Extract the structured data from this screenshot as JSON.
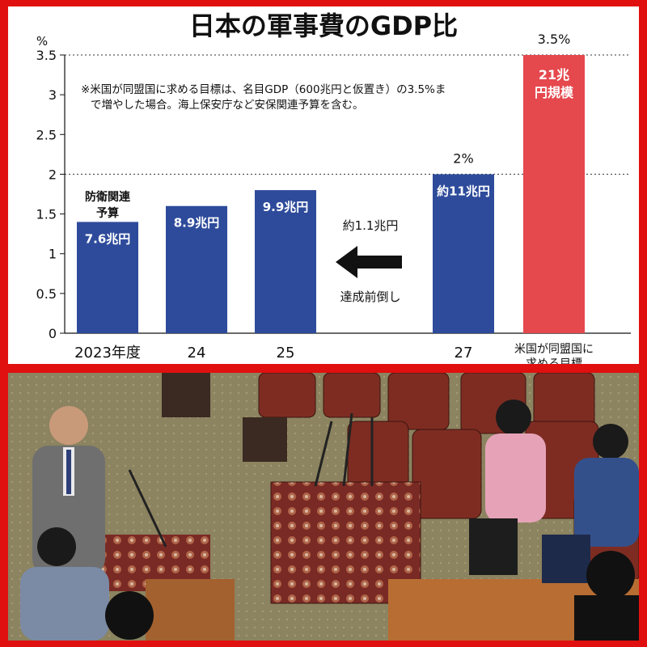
{
  "chart_data": {
    "type": "bar",
    "title": "日本の軍事費のGDP比",
    "ylabel": "%",
    "ylim": [
      0,
      3.5
    ],
    "yticks": [
      0,
      0.5,
      1,
      1.5,
      2,
      2.5,
      3,
      3.5
    ],
    "ytick_labels": [
      "0",
      "0.5",
      "1",
      "1.5",
      "2",
      "2.5",
      "3",
      "3.5"
    ],
    "categories": [
      "2023年度",
      "24",
      "25",
      "",
      "27",
      "米国が同盟国に求める目標"
    ],
    "values": [
      1.4,
      1.6,
      1.8,
      null,
      2.0,
      3.5
    ],
    "bar_labels": [
      "7.6兆円",
      "8.9兆円",
      "9.9兆円",
      "",
      "約11兆円",
      "21兆円規模"
    ],
    "top_labels": [
      "",
      "",
      "",
      "",
      "2%",
      "3.5%"
    ],
    "colors": {
      "blue": "#2e4b9b",
      "red": "#e5484d",
      "grid": "#333333"
    },
    "bar_colors": [
      "blue",
      "blue",
      "blue",
      "",
      "blue",
      "red"
    ],
    "reference_lines": [
      2,
      3.5
    ],
    "grid": false,
    "annotations": {
      "note": "※米国が同盟国に求める目標は、名目GDP（600兆円と仮置き）の3.5%まで増やした場合。海上保安庁など安保関連予算を含む。",
      "budget_label": "防衛関連予算",
      "increase_label": "約1.1兆円",
      "arrow_label": "達成前倒し",
      "arrow_icon": "left-arrow-icon"
    }
  },
  "photo": {
    "description_icon": "parliament-session-photo"
  }
}
